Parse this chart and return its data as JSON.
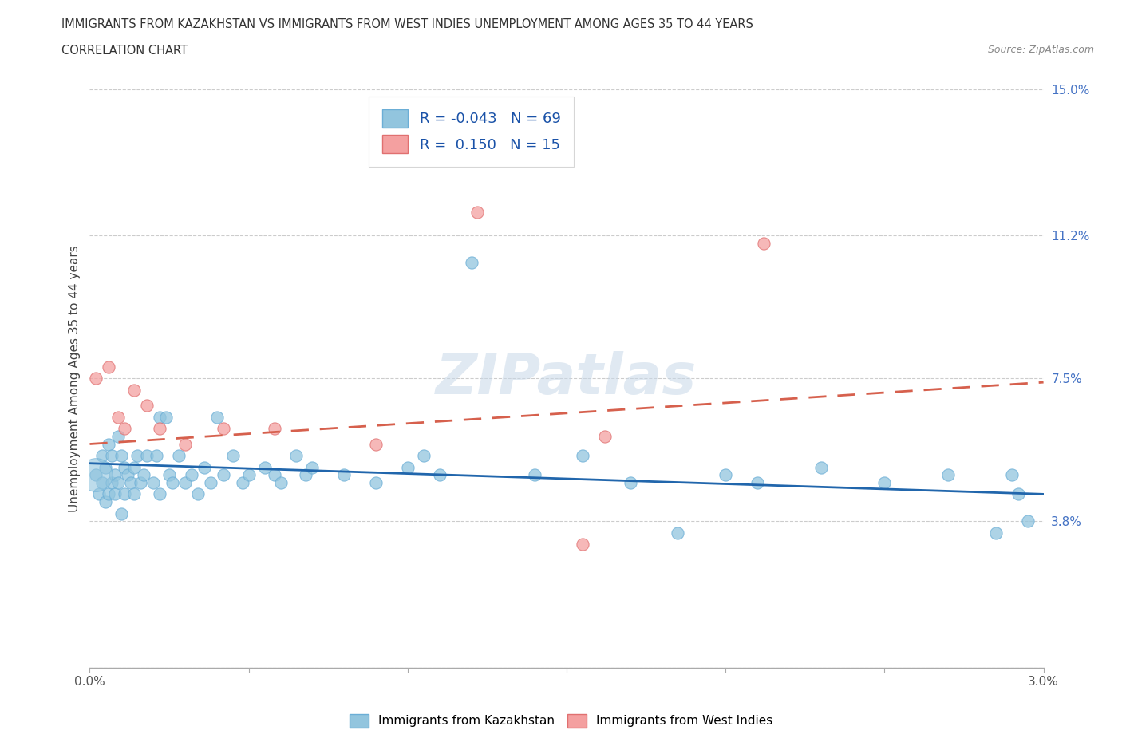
{
  "title_line1": "IMMIGRANTS FROM KAZAKHSTAN VS IMMIGRANTS FROM WEST INDIES UNEMPLOYMENT AMONG AGES 35 TO 44 YEARS",
  "title_line2": "CORRELATION CHART",
  "source": "Source: ZipAtlas.com",
  "ylabel": "Unemployment Among Ages 35 to 44 years",
  "xlim": [
    0.0,
    3.0
  ],
  "ylim": [
    0.0,
    15.0
  ],
  "xtick_vals": [
    0.0,
    0.5,
    1.0,
    1.5,
    2.0,
    2.5,
    3.0
  ],
  "ytick_vals": [
    0.0,
    3.8,
    7.5,
    11.2,
    15.0
  ],
  "xtick_labels": [
    "0.0%",
    "",
    "",
    "",
    "",
    "",
    "3.0%"
  ],
  "ytick_labels": [
    "",
    "3.8%",
    "7.5%",
    "11.2%",
    "15.0%"
  ],
  "legend1_label": "Immigrants from Kazakhstan",
  "legend2_label": "Immigrants from West Indies",
  "R_kaz": -0.043,
  "N_kaz": 69,
  "R_wi": 0.15,
  "N_wi": 15,
  "color_kaz": "#92c5de",
  "color_wi": "#f4a0a0",
  "color_kaz_edge": "#6baed6",
  "color_wi_edge": "#e07070",
  "trendline_color_kaz": "#2166ac",
  "trendline_color_wi": "#d6604d",
  "kaz_trend_x0": 0.0,
  "kaz_trend_y0": 5.3,
  "kaz_trend_x1": 3.0,
  "kaz_trend_y1": 4.5,
  "wi_trend_x0": 0.0,
  "wi_trend_y0": 5.8,
  "wi_trend_x1": 3.0,
  "wi_trend_y1": 7.4,
  "kaz_x": [
    0.02,
    0.03,
    0.04,
    0.04,
    0.05,
    0.05,
    0.06,
    0.06,
    0.07,
    0.07,
    0.08,
    0.08,
    0.09,
    0.09,
    0.1,
    0.1,
    0.11,
    0.11,
    0.12,
    0.13,
    0.14,
    0.14,
    0.15,
    0.16,
    0.17,
    0.18,
    0.2,
    0.21,
    0.22,
    0.22,
    0.24,
    0.25,
    0.26,
    0.28,
    0.3,
    0.32,
    0.34,
    0.36,
    0.38,
    0.4,
    0.42,
    0.45,
    0.48,
    0.5,
    0.55,
    0.58,
    0.6,
    0.65,
    0.68,
    0.7,
    0.8,
    0.9,
    1.0,
    1.05,
    1.1,
    1.2,
    1.4,
    1.55,
    1.7,
    1.85,
    2.0,
    2.1,
    2.3,
    2.5,
    2.7,
    2.85,
    2.9,
    2.92,
    2.95
  ],
  "kaz_y": [
    5.0,
    4.5,
    5.5,
    4.8,
    5.2,
    4.3,
    5.8,
    4.5,
    5.5,
    4.8,
    5.0,
    4.5,
    6.0,
    4.8,
    5.5,
    4.0,
    5.2,
    4.5,
    5.0,
    4.8,
    5.2,
    4.5,
    5.5,
    4.8,
    5.0,
    5.5,
    4.8,
    5.5,
    6.5,
    4.5,
    6.5,
    5.0,
    4.8,
    5.5,
    4.8,
    5.0,
    4.5,
    5.2,
    4.8,
    6.5,
    5.0,
    5.5,
    4.8,
    5.0,
    5.2,
    5.0,
    4.8,
    5.5,
    5.0,
    5.2,
    5.0,
    4.8,
    5.2,
    5.5,
    5.0,
    10.5,
    5.0,
    5.5,
    4.8,
    3.5,
    5.0,
    4.8,
    5.2,
    4.8,
    5.0,
    3.5,
    5.0,
    4.5,
    3.8
  ],
  "kaz_cluster_x": 0.02,
  "kaz_cluster_y": 5.0,
  "kaz_cluster_size": 900,
  "wi_x": [
    0.02,
    0.06,
    0.09,
    0.11,
    0.14,
    0.18,
    0.22,
    0.3,
    0.42,
    0.58,
    0.9,
    1.22,
    1.55,
    1.62,
    2.12
  ],
  "wi_y": [
    7.5,
    7.8,
    6.5,
    6.2,
    7.2,
    6.8,
    6.2,
    5.8,
    6.2,
    6.2,
    5.8,
    11.8,
    3.2,
    6.0,
    11.0
  ]
}
